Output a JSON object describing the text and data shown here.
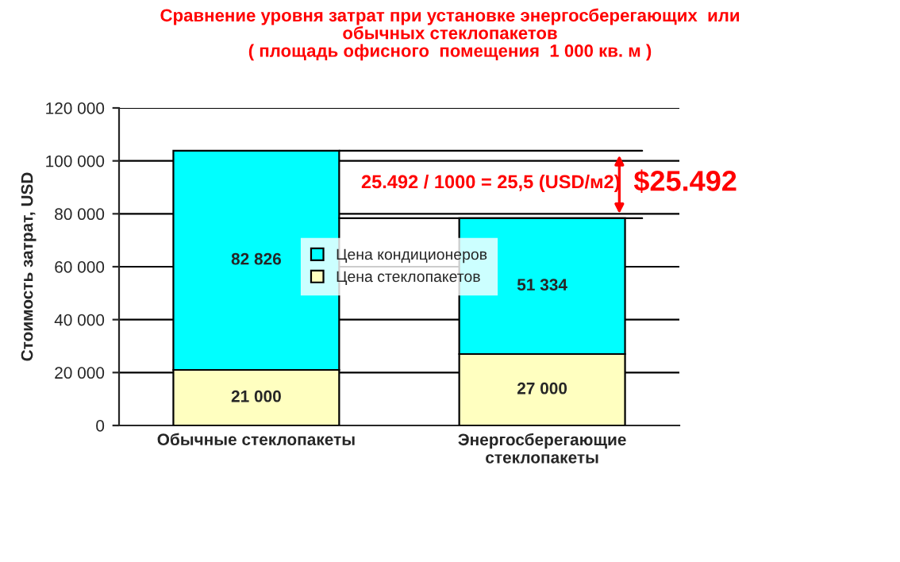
{
  "chart_data": {
    "type": "bar",
    "stacked": true,
    "title": "Сравнение уровня затрат при установке энергосберегающих  или\nобычных стеклопакетов\n( площадь офисного  помещения  1 000 кв. м )",
    "ylabel": "Стоимость затрат, USD",
    "categories": [
      "Обычные стеклопакеты",
      "Энергосберегающие\nстеклопакеты"
    ],
    "series": [
      {
        "name": "Цена стеклопакетов",
        "color": "#ffffc0",
        "values": [
          21000,
          27000
        ],
        "value_labels": [
          "21 000",
          "27 000"
        ]
      },
      {
        "name": "Цена кондиционеров",
        "color": "#00ffff",
        "values": [
          82826,
          51334
        ],
        "value_labels": [
          "82 826",
          "51 334"
        ]
      }
    ],
    "ylim": [
      0,
      120000
    ],
    "yticks": [
      0,
      {
        "value": 20000,
        "label": "20 000"
      },
      {
        "value": 40000,
        "label": "40 000"
      },
      {
        "value": 60000,
        "label": "60 000"
      },
      {
        "value": 80000,
        "label": "80 000"
      },
      {
        "value": 100000,
        "label": "100 000"
      },
      {
        "value": 120000,
        "label": "120 000"
      }
    ],
    "grid": "y",
    "legend": "center",
    "ref_lines": [
      {
        "axis": "y",
        "value": 103826,
        "color": "#000000"
      },
      {
        "axis": "y",
        "value": 78334,
        "color": "#000000"
      }
    ],
    "annotations": [
      "25.492 / 1000 = 25,5 (USD/м2)",
      "$25.492"
    ]
  }
}
